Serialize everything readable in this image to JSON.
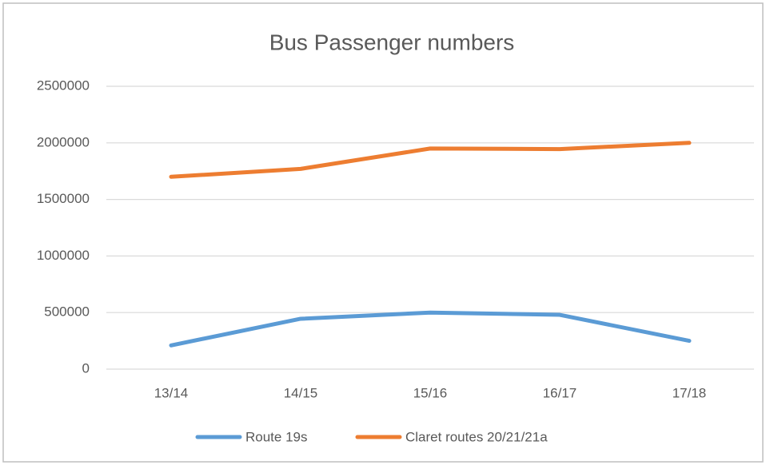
{
  "chart_data": {
    "type": "line",
    "title": "Bus Passenger numbers",
    "categories": [
      "13/14",
      "14/15",
      "15/16",
      "16/17",
      "17/18"
    ],
    "series": [
      {
        "name": "Route 19s",
        "color": "#5b9bd5",
        "values": [
          210000,
          445000,
          500000,
          480000,
          250000
        ]
      },
      {
        "name": "Claret routes 20/21/21a",
        "color": "#ed7d31",
        "values": [
          1700000,
          1770000,
          1950000,
          1945000,
          2000000
        ]
      }
    ],
    "ylim": [
      0,
      2500000
    ],
    "yticks": [
      0,
      500000,
      1000000,
      1500000,
      2000000,
      2500000
    ],
    "grid": true,
    "legend": "bottom"
  }
}
